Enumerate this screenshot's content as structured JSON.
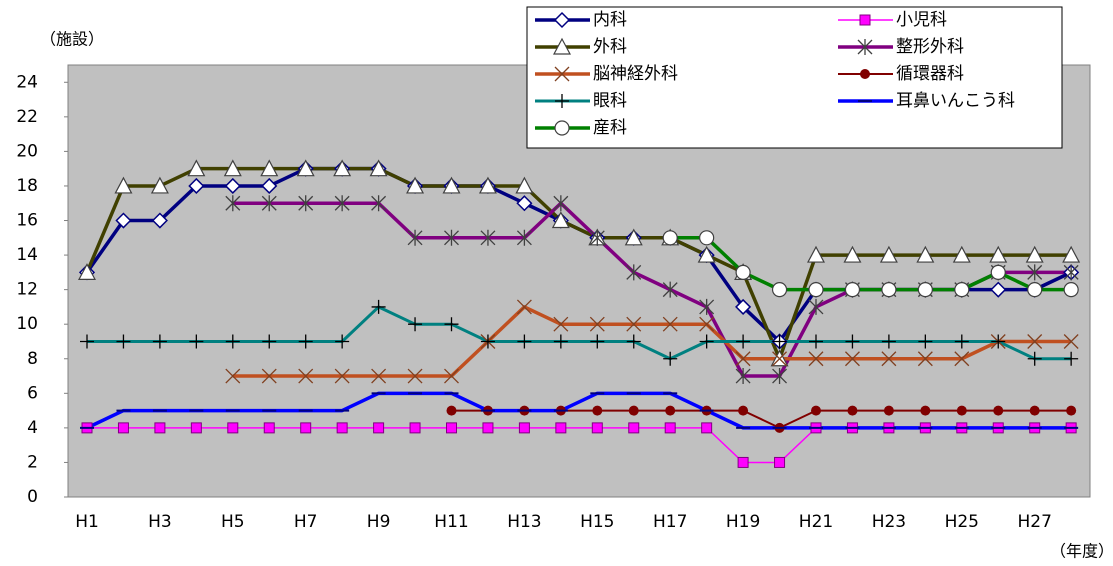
{
  "chart_data": {
    "type": "line",
    "y_label": "（施設）",
    "x_label": "（年度）",
    "categories": [
      "H1",
      null,
      "H3",
      null,
      "H5",
      null,
      "H7",
      null,
      "H9",
      null,
      "H11",
      null,
      "H13",
      null,
      "H15",
      null,
      "H17",
      null,
      "H19",
      null,
      "H21",
      null,
      "H23",
      null,
      "H25",
      null,
      "H27",
      null
    ],
    "ylim": [
      0,
      25
    ],
    "yticks": [
      0,
      2,
      4,
      6,
      8,
      10,
      12,
      14,
      16,
      18,
      20,
      22,
      24
    ],
    "grid": false,
    "legend": "top-right",
    "series": [
      {
        "name": "内科",
        "color": "#000080",
        "marker": "diamond",
        "values": [
          13,
          16,
          16,
          18,
          18,
          18,
          19,
          19,
          19,
          18,
          18,
          18,
          17,
          16,
          15,
          15,
          15,
          14,
          11,
          9,
          12,
          12,
          12,
          12,
          12,
          12,
          12,
          13
        ]
      },
      {
        "name": "小児科",
        "color": "#ff00ff",
        "marker": "square",
        "values": [
          4,
          4,
          4,
          4,
          4,
          4,
          4,
          4,
          4,
          4,
          4,
          4,
          4,
          4,
          4,
          4,
          4,
          4,
          2,
          2,
          4,
          4,
          4,
          4,
          4,
          4,
          4,
          4
        ]
      },
      {
        "name": "外科",
        "color": "#404000",
        "marker": "triangle",
        "values": [
          13,
          18,
          18,
          19,
          19,
          19,
          19,
          19,
          19,
          18,
          18,
          18,
          18,
          16,
          15,
          15,
          15,
          14,
          13,
          8,
          14,
          14,
          14,
          14,
          14,
          14,
          14,
          14
        ]
      },
      {
        "name": "整形外科",
        "color": "#800080",
        "marker": "star",
        "values": [
          null,
          null,
          null,
          null,
          17,
          17,
          17,
          17,
          17,
          15,
          15,
          15,
          15,
          17,
          15,
          13,
          12,
          11,
          7,
          7,
          11,
          12,
          12,
          12,
          12,
          13,
          13,
          13
        ]
      },
      {
        "name": "脳神経外科",
        "color": "#c05020",
        "marker": "x",
        "values": [
          null,
          null,
          null,
          null,
          7,
          7,
          7,
          7,
          7,
          7,
          7,
          9,
          11,
          10,
          10,
          10,
          10,
          10,
          8,
          8,
          8,
          8,
          8,
          8,
          8,
          9,
          9,
          9
        ]
      },
      {
        "name": "循環器科",
        "color": "#800000",
        "marker": "dot",
        "values": [
          null,
          null,
          null,
          null,
          null,
          null,
          null,
          null,
          null,
          null,
          5,
          5,
          5,
          5,
          5,
          5,
          5,
          5,
          5,
          4,
          5,
          5,
          5,
          5,
          5,
          5,
          5,
          5
        ]
      },
      {
        "name": "眼科",
        "color": "#008080",
        "marker": "plus",
        "values": [
          9,
          9,
          9,
          9,
          9,
          9,
          9,
          9,
          11,
          10,
          10,
          9,
          9,
          9,
          9,
          9,
          8,
          9,
          9,
          9,
          9,
          9,
          9,
          9,
          9,
          9,
          8,
          8
        ]
      },
      {
        "name": "耳鼻いんこう科",
        "color": "#0000ff",
        "marker": "dash",
        "values": [
          4,
          5,
          5,
          5,
          5,
          5,
          5,
          5,
          6,
          6,
          6,
          5,
          5,
          5,
          6,
          6,
          6,
          5,
          4,
          4,
          4,
          4,
          4,
          4,
          4,
          4,
          4,
          4
        ]
      },
      {
        "name": "産科",
        "color": "#008000",
        "marker": "circle",
        "values": [
          null,
          null,
          null,
          null,
          null,
          null,
          null,
          null,
          null,
          null,
          null,
          null,
          null,
          null,
          null,
          null,
          15,
          15,
          13,
          12,
          12,
          12,
          12,
          12,
          12,
          13,
          12,
          12
        ]
      }
    ]
  }
}
